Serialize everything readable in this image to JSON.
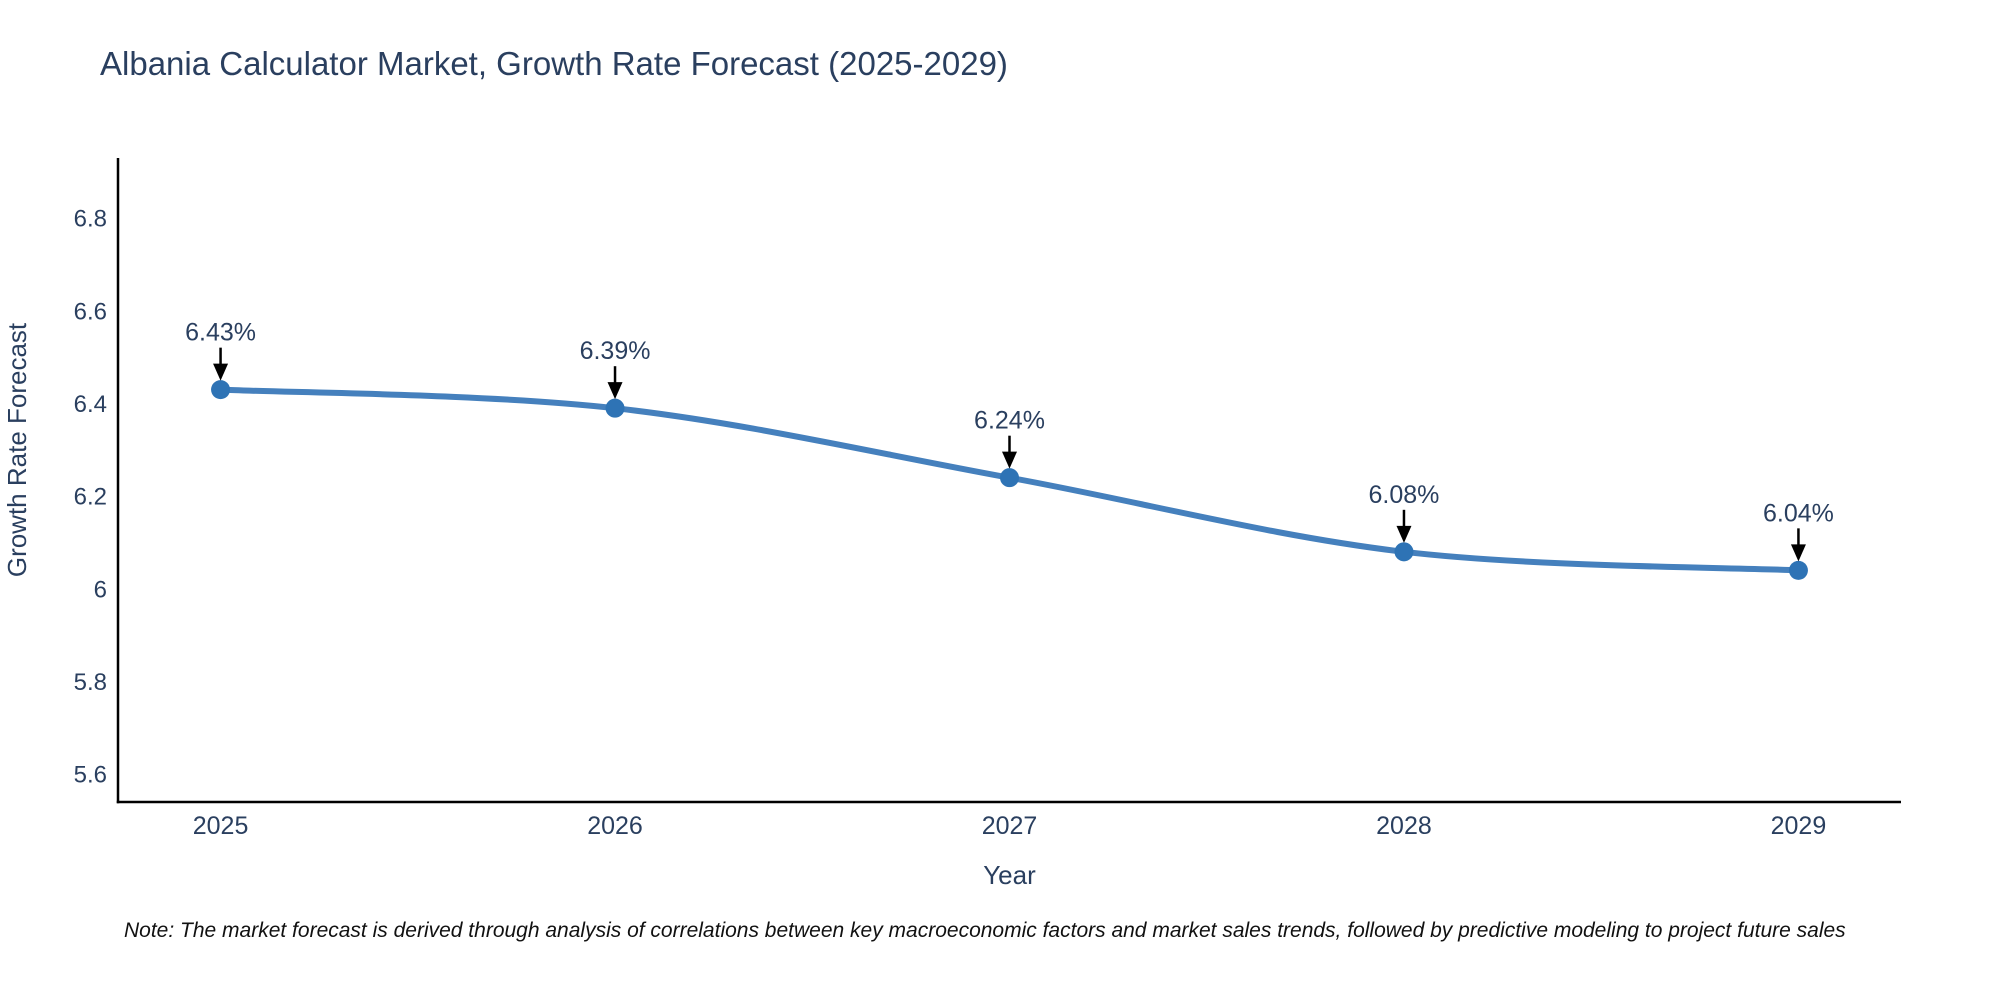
{
  "chart_data": {
    "type": "line",
    "title": "Albania Calculator Market, Growth Rate Forecast (2025-2029)",
    "xlabel": "Year",
    "ylabel": "Growth Rate Forecast",
    "x": [
      2025,
      2026,
      2027,
      2028,
      2029
    ],
    "y": [
      6.43,
      6.39,
      6.24,
      6.08,
      6.04
    ],
    "point_labels": [
      "6.43%",
      "6.39%",
      "6.24%",
      "6.08%",
      "6.04%"
    ],
    "x_tick_labels": [
      "2025",
      "2026",
      "2027",
      "2028",
      "2029"
    ],
    "y_ticks": [
      5.6,
      5.8,
      6,
      6.2,
      6.4,
      6.6,
      6.8
    ],
    "y_tick_labels": [
      "5.6",
      "5.8",
      "6",
      "6.2",
      "6.4",
      "6.6",
      "6.8"
    ],
    "xlim": [
      2024.74,
      2029.26
    ],
    "ylim": [
      5.54,
      6.93
    ],
    "grid": false,
    "legend": "none",
    "smooth": true,
    "line_color": "#4580bd",
    "marker_color": "#2e73b5",
    "axis_color": "#000000",
    "text_color": "#2a3f5f",
    "annotation_arrow_color": "#000000"
  },
  "note": {
    "text": "Note: The market forecast is derived through analysis of correlations between key macroeconomic factors and market sales trends, followed by predictive modeling to project future sales"
  }
}
